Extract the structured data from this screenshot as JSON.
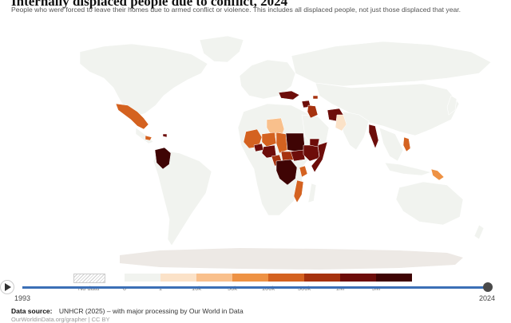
{
  "header": {
    "title": "Internally displaced people due to conflict, 2024",
    "subtitle": "People who were forced to leave their homes due to armed conflict or violence. This includes all displaced people, not just those displaced that year."
  },
  "colors": {
    "ocean": "#ffffff",
    "no_data": "#f1f3ef",
    "antarctica": "#ede9e5",
    "scale": [
      "#f1f3ef",
      "#fbe2c8",
      "#f9c08c",
      "#ee9244",
      "#d46220",
      "#a6320f",
      "#6d0d0a",
      "#3f0404"
    ]
  },
  "regions": [
    {
      "name": "Mexico",
      "level": 4
    },
    {
      "name": "Honduras",
      "level": 4
    },
    {
      "name": "Colombia",
      "level": 7
    },
    {
      "name": "Haiti",
      "level": 6
    },
    {
      "name": "Ukraine",
      "level": 6
    },
    {
      "name": "Syria",
      "level": 6
    },
    {
      "name": "Iraq",
      "level": 5
    },
    {
      "name": "Azerbaijan",
      "level": 5
    },
    {
      "name": "Afghanistan",
      "level": 6
    },
    {
      "name": "Pakistan",
      "level": 1
    },
    {
      "name": "Myanmar",
      "level": 6
    },
    {
      "name": "Philippines",
      "level": 4
    },
    {
      "name": "Papua New Guinea",
      "level": 3
    },
    {
      "name": "Libya",
      "level": 2
    },
    {
      "name": "Mali",
      "level": 4
    },
    {
      "name": "Burkina Faso",
      "level": 6
    },
    {
      "name": "Niger",
      "level": 4
    },
    {
      "name": "Nigeria",
      "level": 6
    },
    {
      "name": "Chad",
      "level": 4
    },
    {
      "name": "Cameroon",
      "level": 5
    },
    {
      "name": "Central African Republic",
      "level": 5
    },
    {
      "name": "Sudan",
      "level": 7
    },
    {
      "name": "South Sudan",
      "level": 6
    },
    {
      "name": "Ethiopia",
      "level": 6
    },
    {
      "name": "Somalia",
      "level": 6
    },
    {
      "name": "Yemen",
      "level": 6
    },
    {
      "name": "DR Congo",
      "level": 7
    },
    {
      "name": "Kenya",
      "level": 4
    },
    {
      "name": "Mozambique",
      "level": 4
    }
  ],
  "legend": {
    "no_data_label": "No data",
    "ticks": [
      "0",
      "1",
      "10k",
      "50k",
      "100k",
      "500k",
      "1M",
      "5M"
    ]
  },
  "timeline": {
    "start_year": "1993",
    "end_year": "2024",
    "position": 1.0
  },
  "footer": {
    "source_label": "Data source:",
    "source_text": "UNHCR (2025) – with major processing by Our World in Data",
    "note": "OurWorldinData.org/grapher | CC BY"
  }
}
